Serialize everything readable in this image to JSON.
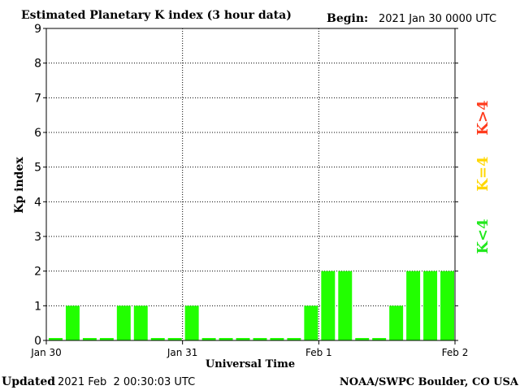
{
  "header": {
    "title": "Estimated Planetary K index (3 hour data)",
    "begin_label": "Begin:",
    "begin_value": "2021 Jan 30 0000 UTC"
  },
  "footer": {
    "updated_label": "Updated",
    "updated_value": "2021 Feb  2 00:30:03 UTC",
    "credit": "NOAA/SWPC Boulder, CO USA"
  },
  "legend": [
    {
      "label": "K>4",
      "color": "#ff3c1e"
    },
    {
      "label": "K=4",
      "color": "#ffd700"
    },
    {
      "label": "K<4",
      "color": "#22e81e"
    }
  ],
  "chart_data": {
    "type": "bar",
    "title": "Estimated Planetary K index (3 hour data)",
    "xlabel": "Universal Time",
    "ylabel": "Kp index",
    "ylim": [
      0,
      9
    ],
    "yticks": [
      "0",
      "1",
      "2",
      "3",
      "4",
      "5",
      "6",
      "7",
      "8",
      "9"
    ],
    "xticks": [
      "Jan 30",
      "Jan 31",
      "Feb 1",
      "Feb 2"
    ],
    "grid": true,
    "bar_color": "#22ff00",
    "values": [
      0,
      1,
      0,
      0,
      1,
      1,
      0,
      0,
      1,
      0,
      0,
      0,
      0,
      0,
      0,
      1,
      2,
      2,
      0,
      0,
      1,
      2,
      2,
      2
    ]
  }
}
